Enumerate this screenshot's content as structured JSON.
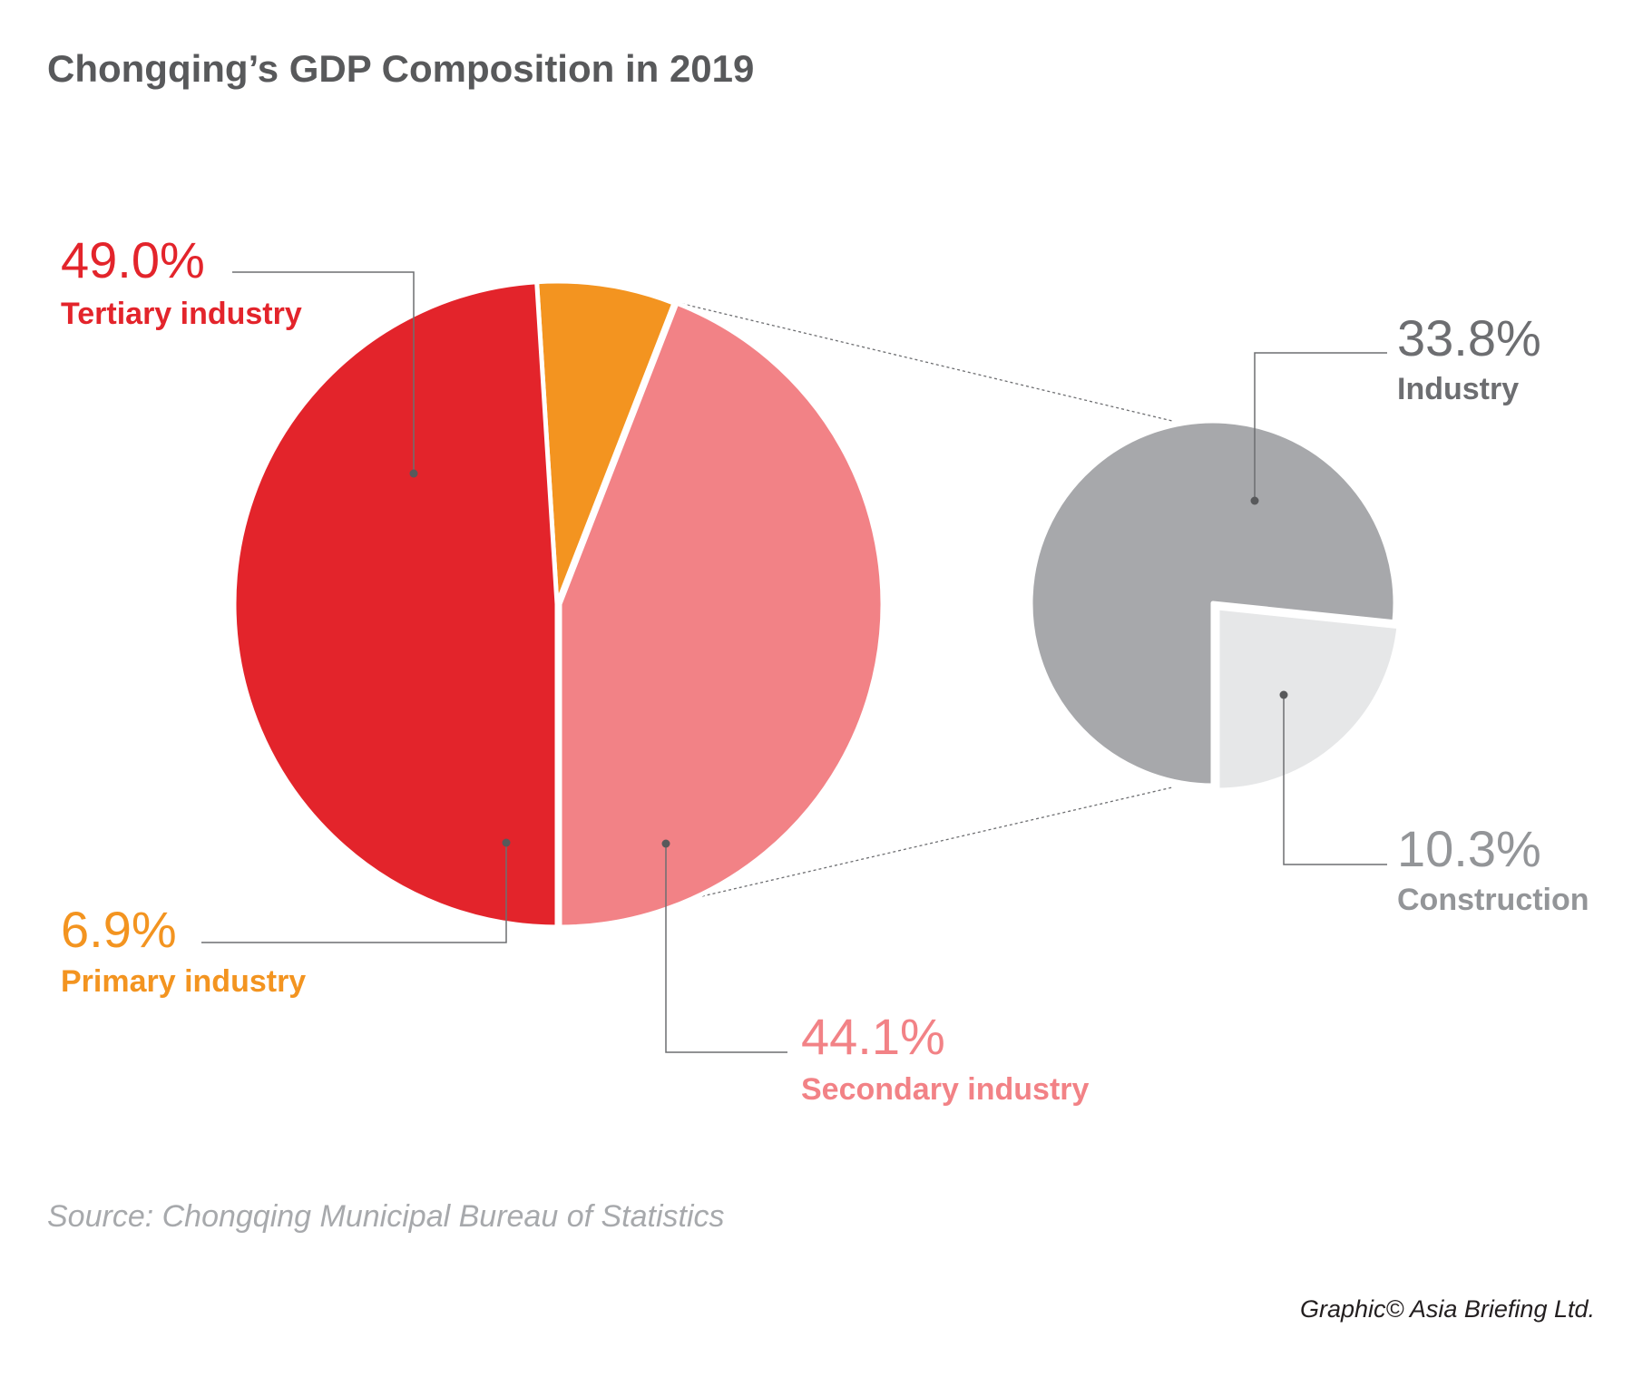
{
  "chart_data": [
    {
      "type": "pie",
      "title": "Chongqing’s GDP Composition in 2019",
      "slices": [
        {
          "label": "Secondary industry",
          "value": 44.1,
          "display": "44.1%",
          "color": "#F28286"
        },
        {
          "label": "Primary industry",
          "value": 6.9,
          "display": "6.9%",
          "color": "#F39420"
        },
        {
          "label": "Tertiary industry",
          "value": 49.0,
          "display": "49.0%",
          "color": "#E3242B"
        }
      ]
    },
    {
      "type": "pie",
      "note_parent": "Secondary industry",
      "slices": [
        {
          "label": "Industry",
          "value": 33.8,
          "display": "33.8%",
          "color": "#A7A8AB",
          "text_color": "#6D6E71"
        },
        {
          "label": "Construction",
          "value": 10.3,
          "display": "10.3%",
          "color": "#E6E7E8",
          "text_color": "#939598"
        }
      ]
    }
  ],
  "source": "Source: Chongqing Municipal Bureau of Statistics",
  "credit": "Graphic© Asia Briefing Ltd."
}
